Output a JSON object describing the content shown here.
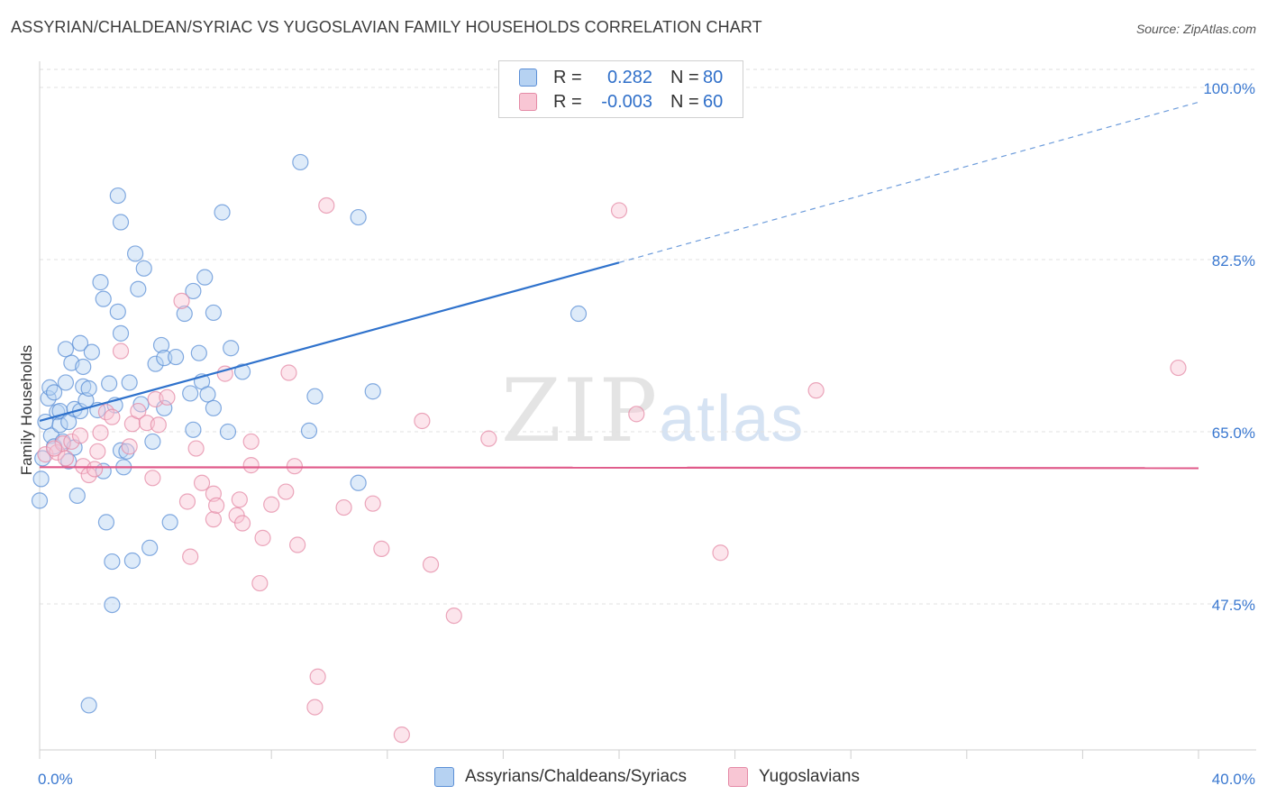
{
  "title": "ASSYRIAN/CHALDEAN/SYRIAC VS YUGOSLAVIAN FAMILY HOUSEHOLDS CORRELATION CHART",
  "source": "Source: ZipAtlas.com",
  "watermark": {
    "zip": "ZIP",
    "atlas": "atlas"
  },
  "legend_top": {
    "rows": [
      {
        "label": "R =",
        "r_value": "0.282",
        "n_label": "N =",
        "n_value": "80",
        "color": "#b6d2f2",
        "border": "#5b8fd6"
      },
      {
        "label": "R =",
        "r_value": "-0.003",
        "n_label": "N =",
        "n_value": "60",
        "color": "#f8c6d4",
        "border": "#e48aa6"
      }
    ]
  },
  "legend_bottom": [
    {
      "label": "Assyrians/Chaldeans/Syriacs",
      "color": "#b6d2f2",
      "border": "#5b8fd6"
    },
    {
      "label": "Yugoslavians",
      "color": "#f8c6d4",
      "border": "#e48aa6"
    }
  ],
  "chart_data": {
    "type": "scatter",
    "title": "ASSYRIAN/CHALDEAN/SYRIAC VS YUGOSLAVIAN FAMILY HOUSEHOLDS CORRELATION CHART",
    "xlabel": "",
    "ylabel": "Family Households",
    "xlim": [
      0,
      40
    ],
    "ylim": [
      30,
      104
    ],
    "x_tick_labels": [
      "0.0%",
      "40.0%"
    ],
    "y_ticks": [
      47.5,
      65.0,
      82.5,
      100.0
    ],
    "y_tick_labels": [
      "47.5%",
      "65.0%",
      "82.5%",
      "100.0%"
    ],
    "grid": true,
    "colors": {
      "blue_fill": "#b6d2f2",
      "blue_stroke": "#5b8fd6",
      "blue_line": "#2f72cc",
      "pink_fill": "#f8c6d4",
      "pink_stroke": "#e48aa6",
      "pink_line": "#e05a8a",
      "axis_label": "#3a78d0"
    },
    "series": [
      {
        "name": "Assyrians/Chaldeans/Syriacs",
        "trend": {
          "x": [
            0,
            20
          ],
          "y": [
            66.1,
            82.2
          ],
          "dashed_to": [
            40,
            98.5
          ]
        },
        "points": [
          [
            0.05,
            60.2
          ],
          [
            0.1,
            62.3
          ],
          [
            0.2,
            66.0
          ],
          [
            0.3,
            68.4
          ],
          [
            0.35,
            69.5
          ],
          [
            0.4,
            64.6
          ],
          [
            0.5,
            63.5
          ],
          [
            0.5,
            69.0
          ],
          [
            0.6,
            67.0
          ],
          [
            0.7,
            65.7
          ],
          [
            0.7,
            67.1
          ],
          [
            0.8,
            64.0
          ],
          [
            0.9,
            70.0
          ],
          [
            0.9,
            73.4
          ],
          [
            1.0,
            66.0
          ],
          [
            1.1,
            72.0
          ],
          [
            1.2,
            67.3
          ],
          [
            1.2,
            63.4
          ],
          [
            1.3,
            58.5
          ],
          [
            1.4,
            67.1
          ],
          [
            1.4,
            74.0
          ],
          [
            1.5,
            71.6
          ],
          [
            1.5,
            69.6
          ],
          [
            1.6,
            68.2
          ],
          [
            1.7,
            69.4
          ],
          [
            1.7,
            37.2
          ],
          [
            1.8,
            73.1
          ],
          [
            2.0,
            67.2
          ],
          [
            2.1,
            80.2
          ],
          [
            2.2,
            61.0
          ],
          [
            2.2,
            78.5
          ],
          [
            2.3,
            55.8
          ],
          [
            2.4,
            69.9
          ],
          [
            2.5,
            51.8
          ],
          [
            2.5,
            47.4
          ],
          [
            2.6,
            67.7
          ],
          [
            2.7,
            77.2
          ],
          [
            2.7,
            89.0
          ],
          [
            2.8,
            75.0
          ],
          [
            2.8,
            63.1
          ],
          [
            2.8,
            86.3
          ],
          [
            2.9,
            61.4
          ],
          [
            3.1,
            70.0
          ],
          [
            3.2,
            51.9
          ],
          [
            3.3,
            83.1
          ],
          [
            3.4,
            79.5
          ],
          [
            3.5,
            67.8
          ],
          [
            3.6,
            81.6
          ],
          [
            3.8,
            53.2
          ],
          [
            3.9,
            64.0
          ],
          [
            4.0,
            71.9
          ],
          [
            4.2,
            73.8
          ],
          [
            4.3,
            67.4
          ],
          [
            4.3,
            72.5
          ],
          [
            4.5,
            55.8
          ],
          [
            4.7,
            72.6
          ],
          [
            5.0,
            77.0
          ],
          [
            5.2,
            68.9
          ],
          [
            5.3,
            65.2
          ],
          [
            5.3,
            79.3
          ],
          [
            5.5,
            73.0
          ],
          [
            5.6,
            70.1
          ],
          [
            5.7,
            80.7
          ],
          [
            5.8,
            68.8
          ],
          [
            6.0,
            67.4
          ],
          [
            6.0,
            77.1
          ],
          [
            6.3,
            87.3
          ],
          [
            6.6,
            73.5
          ],
          [
            7.0,
            71.1
          ],
          [
            9.0,
            92.4
          ],
          [
            9.3,
            65.1
          ],
          [
            9.5,
            68.6
          ],
          [
            11.0,
            86.8
          ],
          [
            11.0,
            59.8
          ],
          [
            11.5,
            69.1
          ],
          [
            18.6,
            77.0
          ],
          [
            0.0,
            58.0
          ],
          [
            1.0,
            62.0
          ],
          [
            3.0,
            63.0
          ],
          [
            6.5,
            65.0
          ]
        ]
      },
      {
        "name": "Yugoslavians",
        "trend": {
          "x": [
            0,
            40
          ],
          "y": [
            61.4,
            61.3
          ]
        },
        "points": [
          [
            0.2,
            62.7
          ],
          [
            0.6,
            62.9
          ],
          [
            0.8,
            63.8
          ],
          [
            0.9,
            62.3
          ],
          [
            1.1,
            64.0
          ],
          [
            1.4,
            64.6
          ],
          [
            1.5,
            61.5
          ],
          [
            1.7,
            60.6
          ],
          [
            1.9,
            61.2
          ],
          [
            2.0,
            63.0
          ],
          [
            2.1,
            64.9
          ],
          [
            2.3,
            67.0
          ],
          [
            2.5,
            66.5
          ],
          [
            2.8,
            73.2
          ],
          [
            3.1,
            63.5
          ],
          [
            3.2,
            65.8
          ],
          [
            3.4,
            67.1
          ],
          [
            3.7,
            65.9
          ],
          [
            3.9,
            60.3
          ],
          [
            4.0,
            68.3
          ],
          [
            4.1,
            65.7
          ],
          [
            4.4,
            68.5
          ],
          [
            4.9,
            78.3
          ],
          [
            5.1,
            57.9
          ],
          [
            5.2,
            52.3
          ],
          [
            5.4,
            63.3
          ],
          [
            5.6,
            59.8
          ],
          [
            6.0,
            58.7
          ],
          [
            6.0,
            56.1
          ],
          [
            6.1,
            57.5
          ],
          [
            6.4,
            70.9
          ],
          [
            6.8,
            56.5
          ],
          [
            6.9,
            58.1
          ],
          [
            7.0,
            55.7
          ],
          [
            7.3,
            64.0
          ],
          [
            7.3,
            61.6
          ],
          [
            7.6,
            49.6
          ],
          [
            7.7,
            54.2
          ],
          [
            8.0,
            57.6
          ],
          [
            8.5,
            58.9
          ],
          [
            8.6,
            71.0
          ],
          [
            8.8,
            61.5
          ],
          [
            8.9,
            53.5
          ],
          [
            9.5,
            37.0
          ],
          [
            9.6,
            40.1
          ],
          [
            9.9,
            88.0
          ],
          [
            10.5,
            57.3
          ],
          [
            11.5,
            57.7
          ],
          [
            11.8,
            53.1
          ],
          [
            13.2,
            66.1
          ],
          [
            13.5,
            51.5
          ],
          [
            14.3,
            46.3
          ],
          [
            15.5,
            64.3
          ],
          [
            20.0,
            87.5
          ],
          [
            20.6,
            66.8
          ],
          [
            23.5,
            52.7
          ],
          [
            26.8,
            69.2
          ],
          [
            39.3,
            71.5
          ],
          [
            12.5,
            34.2
          ],
          [
            0.5,
            63.3
          ]
        ]
      }
    ]
  }
}
